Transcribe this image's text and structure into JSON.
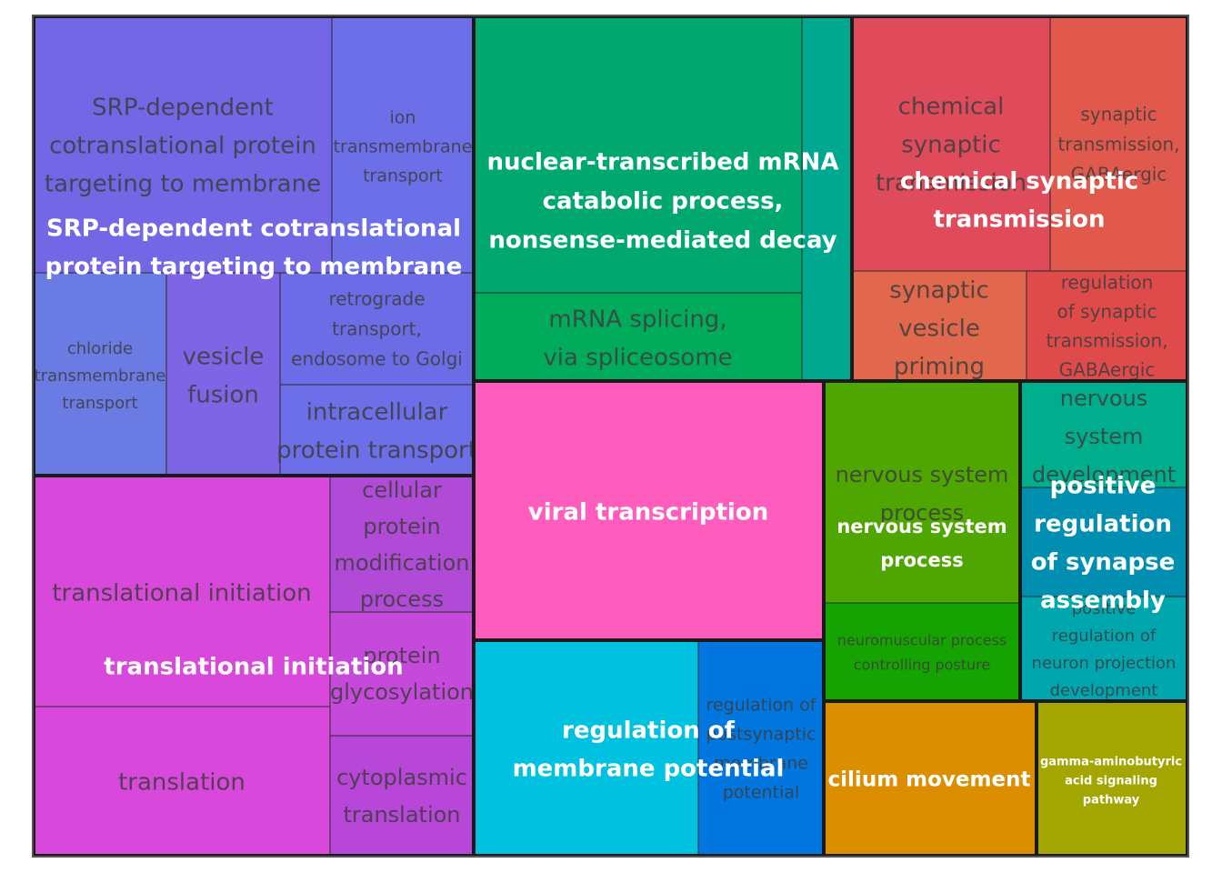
{
  "chart_data": {
    "type": "treemap",
    "groups": [
      {
        "name": "SRP-dependent cotranslational protein targeting to membrane",
        "color": "#7367E6",
        "children": [
          {
            "name": "SRP-dependent cotranslational protein targeting to membrane",
            "color": "#7367E6"
          },
          {
            "name": "ion transmembrane transport",
            "color": "#6C6FE8"
          },
          {
            "name": "chloride transmembrane transport",
            "color": "#6A7BE3"
          },
          {
            "name": "vesicle fusion",
            "color": "#7D65E6"
          },
          {
            "name": "retrograde transport, endosome to Golgi",
            "color": "#6B6CE6"
          },
          {
            "name": "intracellular protein transport",
            "color": "#6C6FE8"
          }
        ]
      },
      {
        "name": "nuclear-transcribed mRNA catabolic process, nonsense-mediated decay",
        "color": "#00A86F",
        "children": [
          {
            "name": "nuclear-transcribed mRNA catabolic process, nonsense-mediated decay",
            "color": "#00A86F"
          },
          {
            "name": "mRNA splicing, via spliceosome",
            "color": "#00AC5C"
          },
          {
            "name": "",
            "color": "#00A88F"
          }
        ]
      },
      {
        "name": "chemical synaptic transmission",
        "color": "#E04B5C",
        "children": [
          {
            "name": "chemical synaptic transmission",
            "color": "#E04B5C"
          },
          {
            "name": "synaptic transmission, GABAergic",
            "color": "#E1584C"
          },
          {
            "name": "synaptic vesicle priming",
            "color": "#E1684C"
          },
          {
            "name": "regulation of synaptic transmission, GABAergic",
            "color": "#DF4B4B"
          }
        ]
      },
      {
        "name": "translational initiation",
        "color": "#D848DB",
        "children": [
          {
            "name": "translational initiation",
            "color": "#D848DB"
          },
          {
            "name": "translation",
            "color": "#D848DB"
          },
          {
            "name": "cellular protein modification process",
            "color": "#B24AD8"
          },
          {
            "name": "protein glycosylation",
            "color": "#C54ADB"
          },
          {
            "name": "cytoplasmic translation",
            "color": "#B846D8"
          }
        ]
      },
      {
        "name": "viral transcription",
        "color": "#FF5DBD",
        "children": [
          {
            "name": "",
            "color": "#FF5DBD"
          }
        ]
      },
      {
        "name": "regulation of membrane potential",
        "color": "#00C2E0",
        "children": [
          {
            "name": "",
            "color": "#00C2E0"
          },
          {
            "name": "regulation of postsynaptic membrane potential",
            "color": "#0076DE"
          }
        ]
      },
      {
        "name": "nervous system process",
        "color": "#4FA600",
        "children": [
          {
            "name": "nervous system process",
            "color": "#4FA600"
          },
          {
            "name": "neuromuscular process controlling posture",
            "color": "#14A300"
          }
        ]
      },
      {
        "name": "positive regulation of synapse assembly",
        "color": "#008FB0",
        "children": [
          {
            "name": "nervous system development",
            "color": "#00AE8E"
          },
          {
            "name": "positive regulation of synapse assembly",
            "color": "#008FB0"
          },
          {
            "name": "positive regulation of neuron projection development",
            "color": "#00A6AE"
          }
        ]
      },
      {
        "name": "cilium movement",
        "color": "#DB8E00",
        "children": [
          {
            "name": "",
            "color": "#DB8E00"
          }
        ]
      },
      {
        "name": "gamma-aminobutyric acid signaling pathway",
        "color": "#A3A500",
        "children": [
          {
            "name": "",
            "color": "#A3A500"
          }
        ]
      }
    ]
  }
}
